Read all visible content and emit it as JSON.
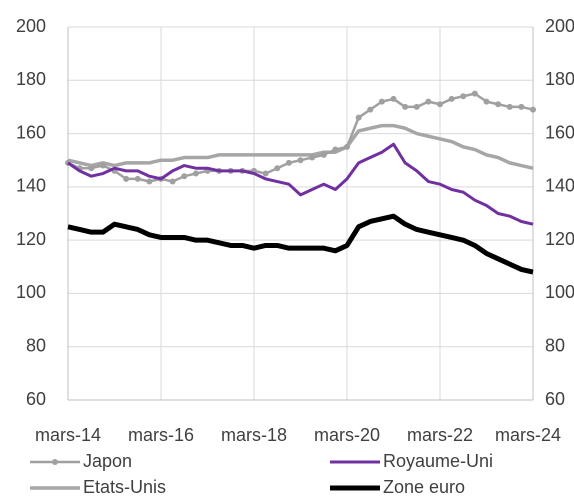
{
  "chart_data": {
    "type": "line",
    "categories": [
      "mars-14",
      null,
      null,
      null,
      null,
      null,
      null,
      null,
      "mars-16",
      null,
      null,
      null,
      null,
      null,
      null,
      null,
      "mars-18",
      null,
      null,
      null,
      null,
      null,
      null,
      null,
      "mars-20",
      null,
      null,
      null,
      null,
      null,
      null,
      null,
      "mars-22",
      null,
      null,
      null,
      null,
      null,
      null,
      null,
      "mars-24"
    ],
    "ylim": [
      60,
      200
    ],
    "yticks": [
      60,
      80,
      100,
      120,
      140,
      160,
      180,
      200
    ],
    "y2lim": [
      60,
      200
    ],
    "y2ticks": [
      60,
      80,
      100,
      120,
      140,
      160,
      180,
      200
    ],
    "grid": true,
    "legend": "bottom",
    "series": [
      {
        "name": "Japon",
        "color": "#a0a0a0",
        "marker": true,
        "values": [
          149,
          147,
          147,
          148,
          146,
          143,
          143,
          142,
          143,
          142,
          144,
          145,
          146,
          146,
          146,
          146,
          146,
          145,
          147,
          149,
          150,
          151,
          152,
          154,
          155,
          166,
          169,
          172,
          173,
          170,
          170,
          172,
          171,
          173,
          174,
          175,
          172,
          171,
          170,
          170,
          169
        ]
      },
      {
        "name": "Royaume-Uni",
        "color": "#7030a0",
        "values": [
          149,
          146,
          144,
          145,
          147,
          146,
          146,
          144,
          143,
          146,
          148,
          147,
          147,
          146,
          146,
          146,
          145,
          143,
          142,
          141,
          137,
          139,
          141,
          139,
          143,
          149,
          151,
          153,
          156,
          149,
          146,
          142,
          141,
          139,
          138,
          135,
          133,
          130,
          129,
          127,
          126
        ]
      },
      {
        "name": "Etats-Unis",
        "color": "#a6a6a6",
        "values": [
          150,
          149,
          148,
          149,
          148,
          149,
          149,
          149,
          150,
          150,
          151,
          151,
          151,
          152,
          152,
          152,
          152,
          152,
          152,
          152,
          152,
          152,
          153,
          153,
          155,
          161,
          162,
          163,
          163,
          162,
          160,
          159,
          158,
          157,
          155,
          154,
          152,
          151,
          149,
          148,
          147
        ]
      },
      {
        "name": "Zone euro",
        "color": "#000000",
        "values": [
          125,
          124,
          123,
          123,
          126,
          125,
          124,
          122,
          121,
          121,
          121,
          120,
          120,
          119,
          118,
          118,
          117,
          118,
          118,
          117,
          117,
          117,
          117,
          116,
          118,
          125,
          127,
          128,
          129,
          126,
          124,
          123,
          122,
          121,
          120,
          118,
          115,
          113,
          111,
          109,
          108
        ]
      }
    ]
  }
}
